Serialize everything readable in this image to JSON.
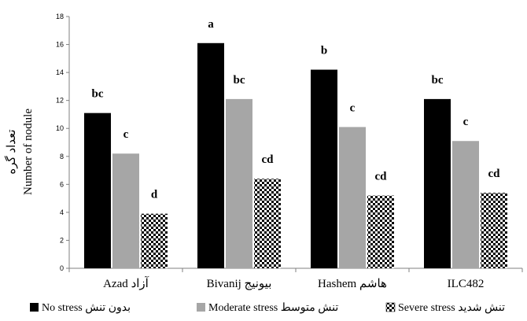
{
  "chart_data": {
    "type": "bar",
    "ylabel": "Number of nodule",
    "ylabel_fa": "تعداد گره",
    "ylim": [
      0,
      18
    ],
    "yticks": [
      0,
      2,
      4,
      6,
      8,
      10,
      12,
      14,
      16,
      18
    ],
    "grid": false,
    "legend_position": "bottom",
    "categories": [
      "Azad آزاد",
      "Bivanij بیونیج",
      "Hashem هاشم",
      "ILC482"
    ],
    "series": [
      {
        "name": "No stress بدون تنش",
        "color": "#000000",
        "fill": "solid",
        "values": [
          11.1,
          16.1,
          14.2,
          12.1
        ],
        "labels": [
          "bc",
          "a",
          "b",
          "bc"
        ]
      },
      {
        "name": "Moderate stress تنش متوسط",
        "color": "#a6a6a6",
        "fill": "solid",
        "values": [
          8.2,
          12.1,
          10.1,
          9.1
        ],
        "labels": [
          "c",
          "bc",
          "c",
          "c"
        ]
      },
      {
        "name": "Severe stress تنش شدید",
        "color": "#000000",
        "fill": "checker",
        "values": [
          3.9,
          6.4,
          5.2,
          5.4
        ],
        "labels": [
          "d",
          "cd",
          "cd",
          "cd"
        ]
      }
    ]
  }
}
